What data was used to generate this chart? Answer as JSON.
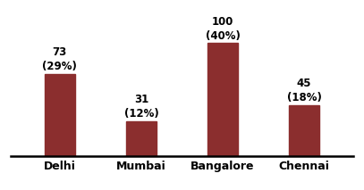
{
  "categories": [
    "Delhi",
    "Mumbai",
    "Bangalore",
    "Chennai"
  ],
  "values": [
    73,
    31,
    100,
    45
  ],
  "percentages": [
    "(29%)",
    "(12%)",
    "(40%)",
    "(18%)"
  ],
  "bar_color": "#8B2E2E",
  "background_color": "#FFFFFF",
  "ylim": [
    0,
    130
  ],
  "label_fontsize": 8.5,
  "tick_fontsize": 9,
  "bar_width": 0.38
}
